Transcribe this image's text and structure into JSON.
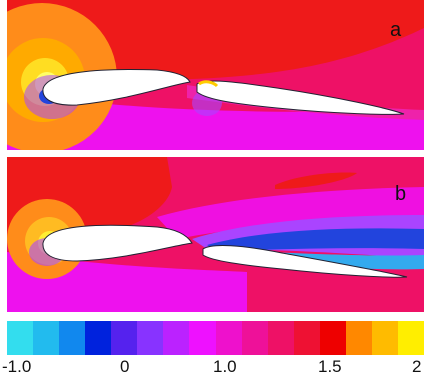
{
  "panels": [
    {
      "id": "a",
      "label": "a"
    },
    {
      "id": "b",
      "label": "b"
    }
  ],
  "colorbar": {
    "colors": [
      "#33ddee",
      "#22bbee",
      "#1188ee",
      "#0022dd",
      "#5522ee",
      "#8833ff",
      "#bb22ff",
      "#ee11ff",
      "#ee11cc",
      "#ee1199",
      "#ee1166",
      "#ee1133",
      "#ee0000",
      "#ff8800",
      "#ffbb00",
      "#ffee00"
    ],
    "ticks": [
      "-1.0",
      "0",
      "1.0",
      "1.5",
      "2"
    ]
  },
  "palette": {
    "background": "#ee1166",
    "red_region": "#ee1a1a",
    "magenta": "#ee11ee",
    "violet": "#aa44ff",
    "blue": "#2244dd",
    "orange": "#ff8c1a",
    "yellow": "#ffee33",
    "airfoil": "#ffffff"
  }
}
